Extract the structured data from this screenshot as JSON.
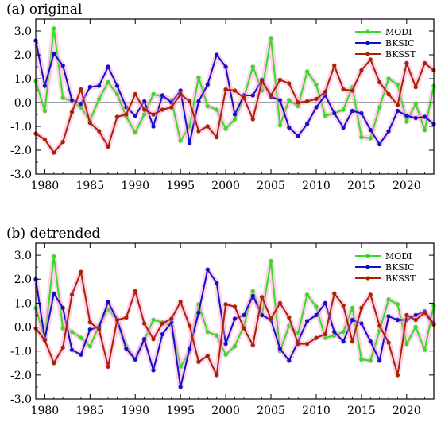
{
  "chart_data": [
    {
      "type": "line",
      "title": "(a) original",
      "xlabel": "",
      "ylabel": "",
      "xlim": [
        1979,
        2023
      ],
      "ylim": [
        -3.0,
        3.5
      ],
      "x_ticks": [
        1980,
        1985,
        1990,
        1995,
        2000,
        2005,
        2010,
        2015,
        2020
      ],
      "x_tick_labels": [
        "1980",
        "1985",
        "1990",
        "1995",
        "2000",
        "2005",
        "2010",
        "2015",
        "2020"
      ],
      "y_ticks": [
        -3,
        -2,
        -1,
        0,
        1,
        2,
        3
      ],
      "y_tick_labels": [
        "-3.0",
        "-2.0",
        "-1.0",
        "0.0",
        "1.0",
        "2.0",
        "3.0"
      ],
      "zero_line": true,
      "legend_position": "top-right",
      "x": [
        1979,
        1980,
        1981,
        1982,
        1983,
        1984,
        1985,
        1986,
        1987,
        1988,
        1989,
        1990,
        1991,
        1992,
        1993,
        1994,
        1995,
        1996,
        1997,
        1998,
        1999,
        2000,
        2001,
        2002,
        2003,
        2004,
        2005,
        2006,
        2007,
        2008,
        2009,
        2010,
        2011,
        2012,
        2013,
        2014,
        2015,
        2016,
        2017,
        2018,
        2019,
        2020,
        2021,
        2022,
        2023
      ],
      "series": [
        {
          "name": "MODI",
          "color": "#33dd22",
          "values": [
            0.9,
            -0.35,
            3.1,
            0.2,
            0.05,
            -0.2,
            -0.75,
            0.15,
            0.85,
            0.35,
            -0.6,
            -1.25,
            -0.5,
            0.35,
            0.25,
            0.1,
            -1.6,
            -1.0,
            1.05,
            -0.15,
            -0.3,
            -1.1,
            -0.7,
            0.2,
            1.5,
            0.5,
            2.7,
            -0.95,
            0.1,
            -0.15,
            1.3,
            0.75,
            -0.55,
            -0.45,
            -0.3,
            0.65,
            -1.45,
            -1.5,
            -0.2,
            1.0,
            0.75,
            -0.8,
            -0.05,
            -1.15,
            0.7
          ]
        },
        {
          "name": "BKSIC",
          "color": "#1111cc",
          "values": [
            2.6,
            0.7,
            2.05,
            1.55,
            0.1,
            -0.05,
            0.65,
            0.7,
            1.5,
            0.7,
            -0.2,
            -0.55,
            0.05,
            -1.0,
            0.3,
            0.0,
            0.5,
            -1.7,
            0.05,
            0.75,
            2.0,
            1.5,
            -0.5,
            0.3,
            0.3,
            0.95,
            0.25,
            0.1,
            -1.05,
            -1.4,
            -0.9,
            -0.2,
            0.3,
            -0.45,
            -1.05,
            -0.35,
            -0.45,
            -1.15,
            -1.75,
            -1.2,
            -0.35,
            -0.55,
            -0.65,
            -0.6,
            -0.9
          ]
        },
        {
          "name": "BKSST",
          "color": "#aa2200",
          "values": [
            -1.3,
            -1.55,
            -2.1,
            -1.65,
            -0.4,
            0.55,
            -0.85,
            -1.2,
            -1.85,
            -0.6,
            -0.5,
            0.35,
            -0.3,
            -0.5,
            -0.3,
            -0.2,
            0.35,
            0.05,
            -1.2,
            -1.0,
            -1.45,
            0.55,
            0.5,
            0.2,
            -0.7,
            0.9,
            0.3,
            0.95,
            0.8,
            0.0,
            0.05,
            0.15,
            0.45,
            1.55,
            0.55,
            0.5,
            1.35,
            1.8,
            0.85,
            0.35,
            -0.1,
            1.65,
            0.65,
            1.65,
            1.35
          ]
        }
      ]
    },
    {
      "type": "line",
      "title": "(b) detrended",
      "xlabel": "",
      "ylabel": "",
      "xlim": [
        1979,
        2023
      ],
      "ylim": [
        -3.0,
        3.5
      ],
      "x_ticks": [
        1980,
        1985,
        1990,
        1995,
        2000,
        2005,
        2010,
        2015,
        2020
      ],
      "x_tick_labels": [
        "1980",
        "1985",
        "1990",
        "1995",
        "2000",
        "2005",
        "2010",
        "2015",
        "2020"
      ],
      "y_ticks": [
        -3,
        -2,
        -1,
        0,
        1,
        2,
        3
      ],
      "y_tick_labels": [
        "-3.0",
        "-2.0",
        "-1.0",
        "0.0",
        "1.0",
        "2.0",
        "3.0"
      ],
      "zero_line": true,
      "legend_position": "top-right",
      "x": [
        1979,
        1980,
        1981,
        1982,
        1983,
        1984,
        1985,
        1986,
        1987,
        1988,
        1989,
        1990,
        1991,
        1992,
        1993,
        1994,
        1995,
        1996,
        1997,
        1998,
        1999,
        2000,
        2001,
        2002,
        2003,
        2004,
        2005,
        2006,
        2007,
        2008,
        2009,
        2010,
        2011,
        2012,
        2013,
        2014,
        2015,
        2016,
        2017,
        2018,
        2019,
        2020,
        2021,
        2022,
        2023
      ],
      "series": [
        {
          "name": "MODI",
          "color": "#33dd22",
          "values": [
            0.8,
            -0.5,
            2.95,
            -0.05,
            -0.2,
            -0.45,
            -0.8,
            0.05,
            0.75,
            0.3,
            -0.8,
            -1.35,
            -0.55,
            0.3,
            0.2,
            0.05,
            -1.65,
            -1.05,
            0.95,
            -0.2,
            -0.35,
            -1.15,
            -0.8,
            0.05,
            1.5,
            0.5,
            2.75,
            -1.0,
            0.05,
            -0.25,
            1.35,
            0.85,
            -0.45,
            -0.35,
            -0.2,
            0.8,
            -1.35,
            -1.4,
            -0.15,
            1.15,
            0.95,
            -0.7,
            0.0,
            -0.95,
            0.9
          ]
        },
        {
          "name": "BKSIC",
          "color": "#1111cc",
          "values": [
            2.0,
            -0.5,
            1.4,
            0.8,
            -0.95,
            -1.15,
            -0.1,
            0.0,
            1.05,
            0.3,
            -0.9,
            -1.35,
            -0.5,
            -1.8,
            -0.3,
            0.2,
            -2.5,
            -0.9,
            0.6,
            2.4,
            1.85,
            -0.7,
            0.35,
            0.5,
            1.3,
            0.5,
            0.3,
            -0.9,
            -1.4,
            -0.6,
            0.25,
            0.5,
            1.0,
            -0.2,
            -0.6,
            0.3,
            0.15,
            -0.6,
            -1.4,
            0.45,
            0.3,
            0.3,
            0.5,
            0.65,
            0.15
          ]
        },
        {
          "name": "BKSST",
          "color": "#aa2200",
          "values": [
            -0.05,
            -0.55,
            -1.5,
            -0.85,
            1.35,
            2.3,
            0.2,
            -0.1,
            -1.65,
            0.3,
            0.4,
            1.5,
            0.15,
            -0.5,
            0.15,
            0.35,
            1.05,
            0.05,
            -1.45,
            -1.2,
            -2.0,
            0.95,
            0.85,
            -0.05,
            -0.75,
            1.25,
            0.35,
            1.0,
            0.4,
            -0.7,
            -0.7,
            -0.45,
            -0.3,
            1.4,
            0.9,
            -0.6,
            0.8,
            1.35,
            0.05,
            -0.65,
            -2.0,
            0.5,
            0.3,
            0.6,
            0.1
          ]
        }
      ]
    }
  ]
}
